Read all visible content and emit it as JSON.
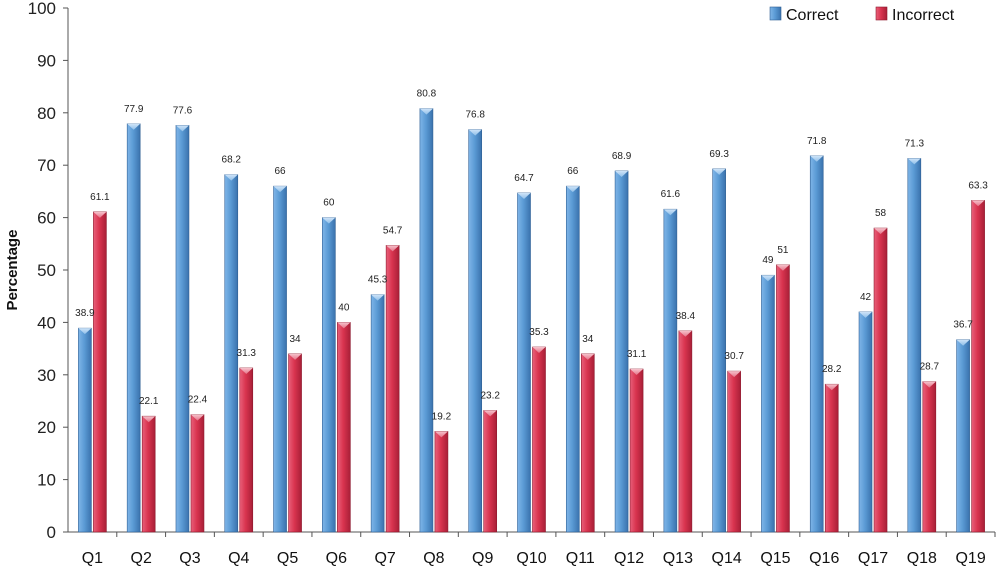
{
  "chart_data": {
    "type": "bar",
    "title": "",
    "xlabel": "",
    "ylabel": "Percentage",
    "ylim": [
      0,
      100
    ],
    "yticks": [
      0,
      10,
      20,
      30,
      40,
      50,
      60,
      70,
      80,
      90,
      100
    ],
    "grid": false,
    "legend_position": "top-right",
    "categories": [
      "Q1",
      "Q2",
      "Q3",
      "Q4",
      "Q5",
      "Q6",
      "Q7",
      "Q8",
      "Q9",
      "Q10",
      "Q11",
      "Q12",
      "Q13",
      "Q14",
      "Q15",
      "Q16",
      "Q17",
      "Q18",
      "Q19"
    ],
    "series": [
      {
        "name": "Correct",
        "color": "#5b9bd5",
        "values": [
          38.9,
          77.9,
          77.6,
          68.2,
          66,
          60,
          45.3,
          80.8,
          76.8,
          64.7,
          66,
          68.9,
          61.6,
          69.3,
          49,
          71.8,
          42,
          71.3,
          36.7
        ]
      },
      {
        "name": "Incorrect",
        "color": "#d9344f",
        "values": [
          61.1,
          22.1,
          22.4,
          31.3,
          34,
          40,
          54.7,
          19.2,
          23.2,
          35.3,
          34,
          31.1,
          38.4,
          30.7,
          51,
          28.2,
          58,
          28.7,
          63.3
        ]
      }
    ]
  }
}
